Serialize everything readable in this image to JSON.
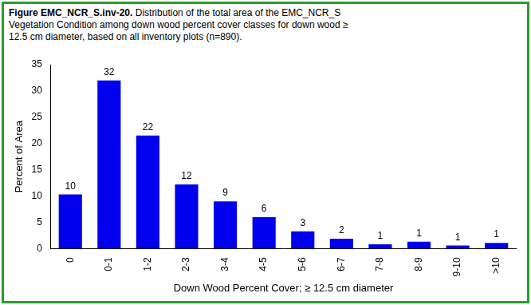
{
  "chart_data": {
    "type": "bar",
    "title": "Figure EMC_NCR_S.inv-20. Distribution of the total area of the EMC_NCR_S Vegetation Condition among down wood percent cover classes for down wood ≥ 12.5 cm diameter, based on all inventory plots (n=890).",
    "x_label": "Down Wood Percent Cover; ≥ 12.5 cm diameter",
    "y_label": "Percent of Area",
    "categories": [
      "0",
      "0-1",
      "1-2",
      "2-3",
      "3-4",
      "4-5",
      "5-6",
      "6-7",
      "7-8",
      "8-9",
      "9-10",
      ">10"
    ],
    "values": [
      10.3,
      32,
      21.5,
      12.2,
      9,
      6,
      3.3,
      1.9,
      0.8,
      1.3,
      0.6,
      1.1
    ],
    "value_labels": [
      "10",
      "32",
      "22",
      "12",
      "9",
      "6",
      "3",
      "2",
      "1",
      "1",
      "1",
      "1"
    ],
    "color": "#0000ee",
    "ylim": [
      0,
      35
    ],
    "yticks": [
      0,
      5,
      10,
      15,
      20,
      25,
      30,
      35
    ],
    "grid": false,
    "data_labels": true
  }
}
